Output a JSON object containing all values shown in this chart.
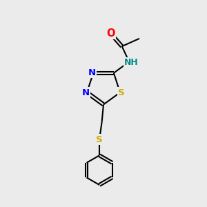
{
  "background_color": "#ebebeb",
  "bond_color": "#000000",
  "atom_colors": {
    "O": "#ff0000",
    "N": "#0000ff",
    "S": "#ccaa00",
    "H": "#008b8b",
    "C": "#000000"
  },
  "font_size": 9.5,
  "figsize": [
    3.0,
    3.0
  ],
  "dpi": 100
}
